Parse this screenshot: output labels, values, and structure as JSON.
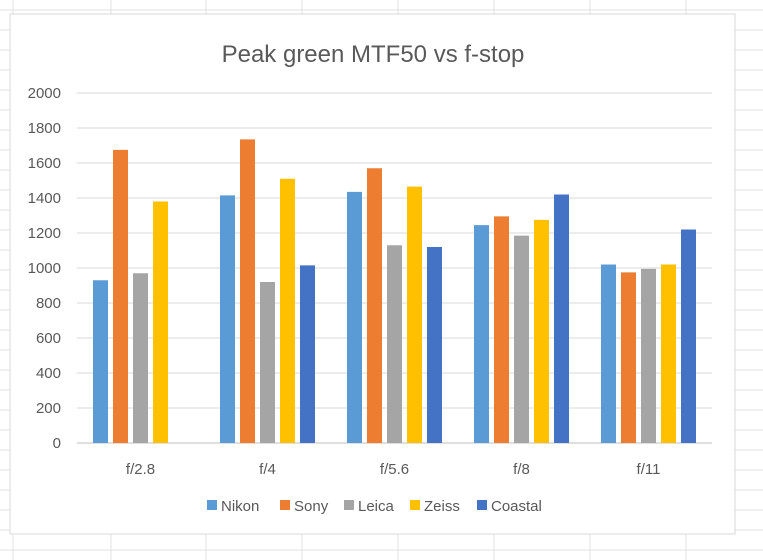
{
  "chart_data": {
    "type": "bar",
    "title": "Peak green MTF50 vs f-stop",
    "xlabel": "",
    "ylabel": "",
    "categories": [
      "f/2.8",
      "f/4",
      "f/5.6",
      "f/8",
      "f/11"
    ],
    "y_ticks": [
      "0",
      "200",
      "400",
      "600",
      "800",
      "1000",
      "1200",
      "1400",
      "1600",
      "1800",
      "2000"
    ],
    "ylim": [
      0,
      2000
    ],
    "grid": true,
    "legend_position": "bottom",
    "series": [
      {
        "name": "Nikon",
        "color": "#5B9BD5",
        "values": [
          930,
          1415,
          1435,
          1245,
          1020
        ]
      },
      {
        "name": "Sony",
        "color": "#ED7D31",
        "values": [
          1675,
          1735,
          1570,
          1295,
          975
        ]
      },
      {
        "name": "Leica",
        "color": "#A5A5A5",
        "values": [
          970,
          920,
          1130,
          1185,
          995
        ]
      },
      {
        "name": "Zeiss",
        "color": "#FFC000",
        "values": [
          1380,
          1510,
          1465,
          1275,
          1020
        ]
      },
      {
        "name": "Coastal",
        "color": "#4472C4",
        "values": [
          null,
          1015,
          1120,
          1420,
          1220
        ]
      }
    ]
  }
}
